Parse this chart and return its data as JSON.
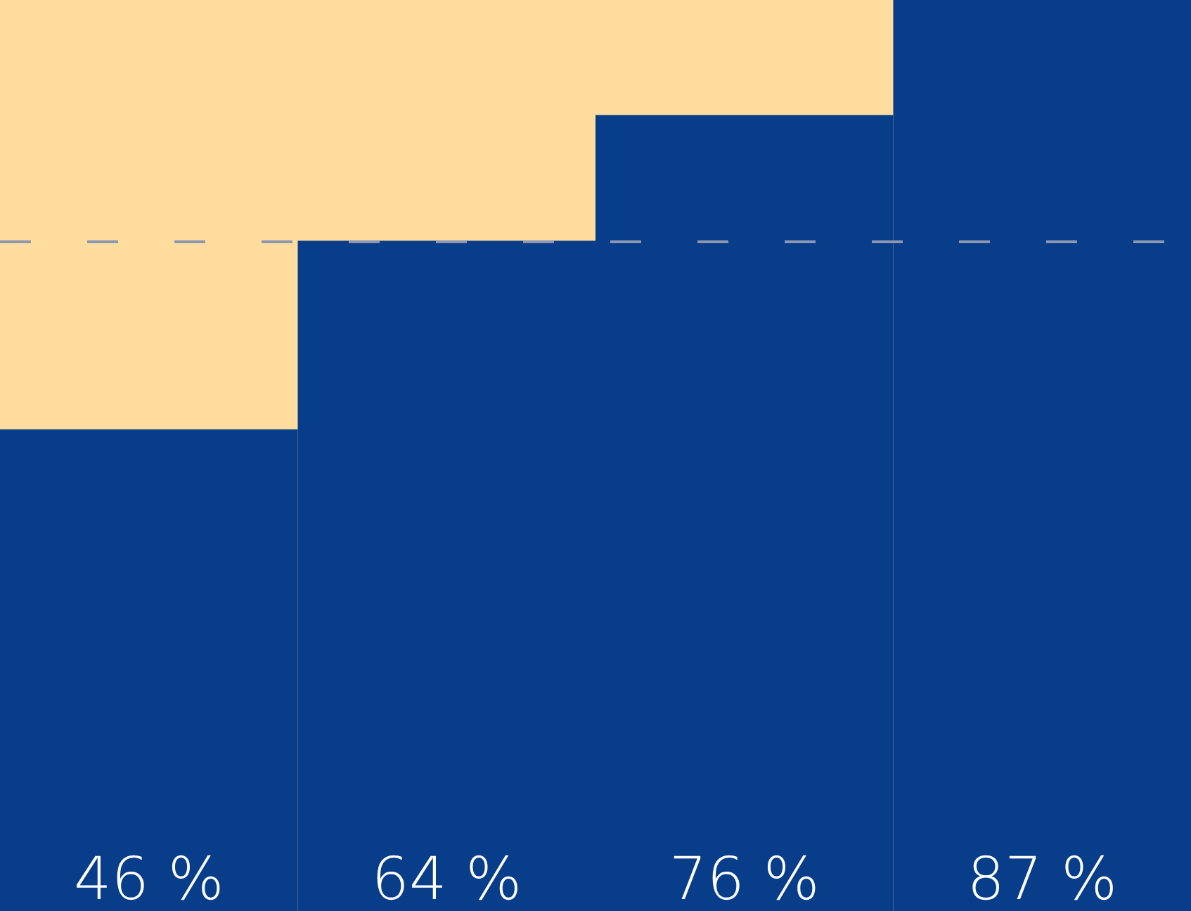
{
  "chart_data": {
    "type": "bar",
    "categories": [
      null,
      null,
      null,
      null
    ],
    "values": [
      46,
      64,
      76,
      87
    ],
    "color": "#083d89",
    "value_labels": [
      "46 %",
      "64 %",
      "76 %",
      "87 %"
    ],
    "ref_lines": [
      {
        "axis": "y",
        "value": 64,
        "color": "#8b97b3",
        "line_style": "dashed"
      }
    ]
  }
}
